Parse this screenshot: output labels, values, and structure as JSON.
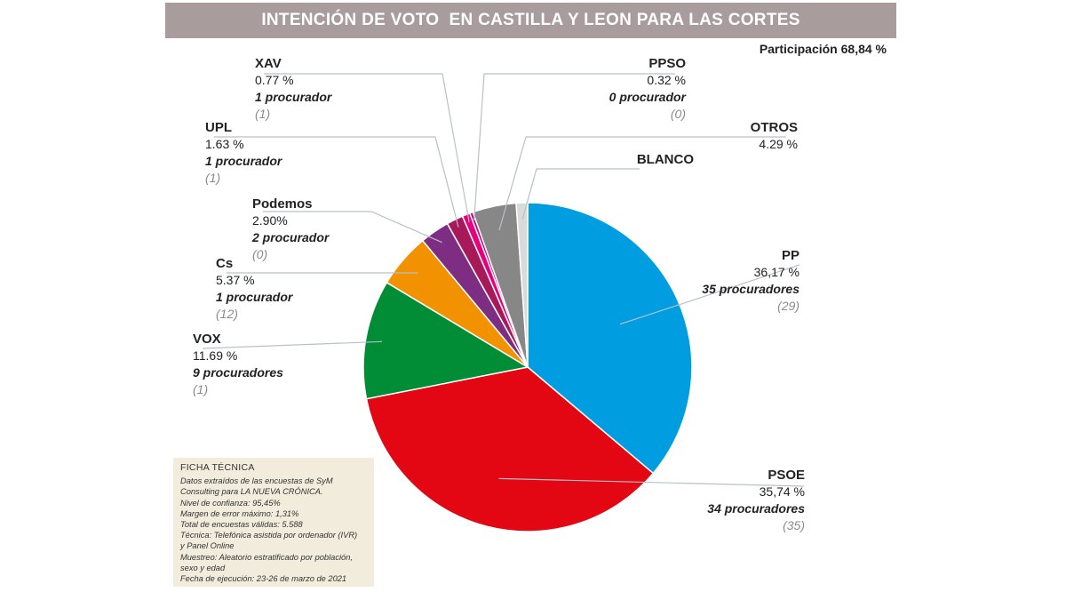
{
  "title": "INTENCIÓN DE VOTO  EN CASTILLA Y LEON PARA LAS CORTES",
  "participation": "Participación 68,84 %",
  "chart_data": {
    "type": "pie",
    "title": "INTENCIÓN DE VOTO  EN CASTILLA Y LEON PARA LAS CORTES",
    "slices": [
      {
        "name": "PP",
        "value": 36.17,
        "pct_label": "36,17 %",
        "seats": "35 procuradores",
        "prev": "(29)",
        "color": "#009ee0"
      },
      {
        "name": "PSOE",
        "value": 35.74,
        "pct_label": "35,74 %",
        "seats": "34 procuradores",
        "prev": "(35)",
        "color": "#e30613"
      },
      {
        "name": "VOX",
        "value": 11.69,
        "pct_label": "11.69 %",
        "seats": "9 procuradores",
        "prev": "(1)",
        "color": "#008d36"
      },
      {
        "name": "Cs",
        "value": 5.37,
        "pct_label": "5.37 %",
        "seats": "1 procurador",
        "prev": "(12)",
        "color": "#f39200"
      },
      {
        "name": "Podemos",
        "value": 2.9,
        "pct_label": "2.90%",
        "seats": "2 procurador",
        "prev": "(0)",
        "color": "#7d2e82"
      },
      {
        "name": "UPL",
        "value": 1.63,
        "pct_label": "1.63 %",
        "seats": "1 procurador",
        "prev": "(1)",
        "color": "#a8195a"
      },
      {
        "name": "XAV",
        "value": 0.77,
        "pct_label": "0.77 %",
        "seats": "1 procurador",
        "prev": "(1)",
        "color": "#e6007e"
      },
      {
        "name": "PPSO",
        "value": 0.32,
        "pct_label": "0.32 %",
        "seats": "0 procurador",
        "prev": "(0)",
        "color": "#c8007a"
      },
      {
        "name": "OTROS",
        "value": 4.29,
        "pct_label": "4.29 %",
        "color": "#878787"
      },
      {
        "name": "BLANCO",
        "value": 1.12,
        "color": "#dadada"
      }
    ]
  },
  "ficha": {
    "title": "FICHA TÉCNICA",
    "lines": [
      "Datos extraídos de las encuestas de SyM",
      "Consulting para LA NUEVA CRÓNICA.",
      "Nivel de confianza: 95,45%",
      "Margen de error máximo: 1,31%",
      "Total de encuestas válidas: 5.588",
      "Técnica: Telefónica asistida por ordenador (IVR)",
      "y Panel Online",
      "Muestreo: Aleatorio estratificado por población,",
      "sexo y edad",
      "Fecha de ejecución: 23-26 de marzo de 2021"
    ]
  }
}
